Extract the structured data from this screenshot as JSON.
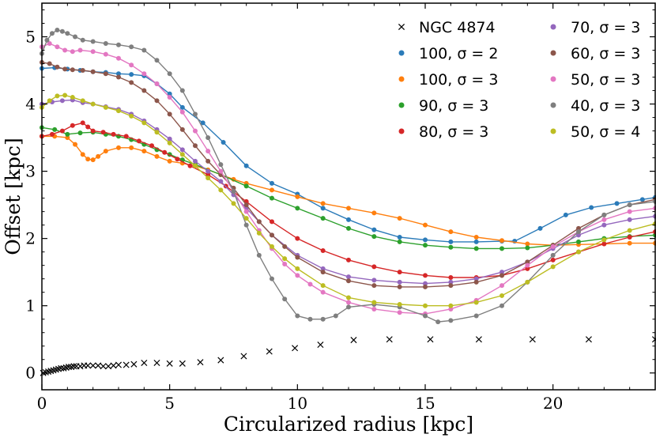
{
  "chart_data": {
    "type": "line",
    "title": "",
    "xlabel": "Circularized radius [kpc]",
    "ylabel": "Offset [kpc]",
    "xlim": [
      0,
      24
    ],
    "ylim": [
      -0.25,
      5.5
    ],
    "xticks": [
      0,
      5,
      10,
      15,
      20
    ],
    "yticks": [
      0,
      1,
      2,
      3,
      4,
      5
    ],
    "xtick_labels": [
      "0",
      "5",
      "10",
      "15",
      "20"
    ],
    "ytick_labels": [
      "0",
      "1",
      "2",
      "3",
      "4",
      "5"
    ],
    "grid": false,
    "legend_position": "top-right",
    "series": [
      {
        "name": "NGC 4874",
        "marker": "x",
        "color": "#000000",
        "line": false,
        "x": [
          0.05,
          0.15,
          0.25,
          0.35,
          0.45,
          0.55,
          0.65,
          0.75,
          0.85,
          0.95,
          1.05,
          1.15,
          1.25,
          1.35,
          1.5,
          1.65,
          1.8,
          2.0,
          2.2,
          2.4,
          2.6,
          2.8,
          3.0,
          3.3,
          3.6,
          4.0,
          4.5,
          5.0,
          5.5,
          6.2,
          7.0,
          7.9,
          8.9,
          9.9,
          10.9,
          12.2,
          13.6,
          15.2,
          17.1,
          19.2,
          21.4,
          24.0
        ],
        "y": [
          0.0,
          0.01,
          0.02,
          0.03,
          0.04,
          0.05,
          0.06,
          0.07,
          0.07,
          0.08,
          0.09,
          0.09,
          0.1,
          0.1,
          0.1,
          0.11,
          0.11,
          0.11,
          0.11,
          0.1,
          0.1,
          0.11,
          0.12,
          0.12,
          0.13,
          0.15,
          0.15,
          0.14,
          0.14,
          0.16,
          0.19,
          0.25,
          0.32,
          0.37,
          0.42,
          0.49,
          0.5,
          0.5,
          0.5,
          0.5,
          0.5,
          0.5
        ]
      },
      {
        "name": "100, σ=2",
        "marker": "o",
        "color": "#2b7bb9",
        "line": true,
        "x": [
          0.0,
          0.5,
          1.0,
          1.5,
          2.0,
          2.5,
          3.0,
          3.5,
          4.0,
          4.5,
          5.0,
          5.5,
          6.3,
          7.1,
          8.0,
          9.0,
          10.0,
          11.0,
          12.0,
          13.0,
          14.0,
          15.0,
          16.0,
          17.0,
          18.0,
          18.5,
          19.5,
          20.5,
          21.5,
          22.5,
          23.5,
          24.0
        ],
        "y": [
          4.53,
          4.54,
          4.52,
          4.5,
          4.48,
          4.47,
          4.45,
          4.44,
          4.42,
          4.3,
          4.15,
          3.95,
          3.72,
          3.43,
          3.08,
          2.82,
          2.66,
          2.45,
          2.28,
          2.13,
          2.02,
          1.98,
          1.95,
          1.95,
          1.96,
          1.96,
          2.15,
          2.35,
          2.46,
          2.52,
          2.58,
          2.61
        ]
      },
      {
        "name": "100, σ=3",
        "marker": "o",
        "color": "#ff7f0e",
        "line": true,
        "x": [
          0.0,
          0.5,
          1.0,
          1.3,
          1.6,
          1.8,
          2.0,
          2.2,
          2.5,
          3.0,
          3.5,
          4.0,
          4.5,
          5.0,
          5.5,
          6.0,
          6.5,
          7.0,
          7.5,
          8.0,
          9.0,
          10.0,
          11.0,
          12.0,
          13.0,
          14.0,
          15.0,
          16.0,
          17.0,
          18.0,
          19.0,
          20.0,
          21.0,
          22.0,
          23.0,
          24.0
        ],
        "y": [
          3.52,
          3.52,
          3.5,
          3.4,
          3.25,
          3.18,
          3.17,
          3.22,
          3.3,
          3.35,
          3.35,
          3.3,
          3.22,
          3.15,
          3.12,
          3.08,
          3.02,
          2.95,
          2.88,
          2.82,
          2.72,
          2.62,
          2.52,
          2.45,
          2.38,
          2.3,
          2.2,
          2.1,
          2.02,
          1.97,
          1.92,
          1.9,
          1.91,
          1.92,
          1.93,
          1.93
        ]
      },
      {
        "name": "90, σ=3",
        "marker": "o",
        "color": "#2ca02c",
        "line": true,
        "x": [
          0.0,
          0.5,
          1.0,
          1.5,
          2.0,
          2.5,
          3.0,
          3.5,
          4.0,
          4.5,
          5.0,
          5.5,
          6.0,
          7.0,
          8.0,
          9.0,
          10.0,
          11.0,
          12.0,
          13.0,
          14.0,
          15.0,
          16.0,
          17.0,
          18.0,
          19.0,
          20.0,
          21.0,
          22.0,
          23.0,
          24.0
        ],
        "y": [
          3.65,
          3.62,
          3.55,
          3.57,
          3.58,
          3.55,
          3.52,
          3.47,
          3.4,
          3.32,
          3.25,
          3.17,
          3.1,
          2.95,
          2.78,
          2.6,
          2.45,
          2.3,
          2.15,
          2.03,
          1.95,
          1.9,
          1.87,
          1.85,
          1.85,
          1.86,
          1.9,
          1.95,
          2.0,
          2.03,
          2.05
        ]
      },
      {
        "name": "80, σ=3",
        "marker": "o",
        "color": "#d62728",
        "line": true,
        "x": [
          0.0,
          0.4,
          0.8,
          1.2,
          1.6,
          1.8,
          2.0,
          2.4,
          2.8,
          3.3,
          3.8,
          4.3,
          4.8,
          5.3,
          5.8,
          6.5,
          7.2,
          8.0,
          9.0,
          10.0,
          11.0,
          12.0,
          13.0,
          14.0,
          15.0,
          16.0,
          17.0,
          18.0,
          19.0,
          20.0,
          21.0,
          22.0,
          23.0,
          24.0
        ],
        "y": [
          3.52,
          3.55,
          3.6,
          3.68,
          3.72,
          3.66,
          3.6,
          3.58,
          3.55,
          3.52,
          3.45,
          3.38,
          3.28,
          3.18,
          3.08,
          2.95,
          2.78,
          2.55,
          2.25,
          2.0,
          1.82,
          1.68,
          1.58,
          1.5,
          1.45,
          1.42,
          1.42,
          1.45,
          1.55,
          1.68,
          1.8,
          1.92,
          2.02,
          2.1
        ]
      },
      {
        "name": "70, σ=3",
        "marker": "o",
        "color": "#9467bd",
        "line": true,
        "x": [
          0.0,
          0.4,
          0.8,
          1.2,
          1.6,
          2.0,
          2.5,
          3.0,
          3.5,
          4.0,
          4.5,
          5.0,
          5.5,
          6.0,
          6.5,
          7.0,
          7.5,
          8.0,
          8.5,
          9.0,
          10.0,
          11.0,
          12.0,
          13.0,
          14.0,
          15.0,
          16.0,
          17.0,
          18.0,
          19.0,
          20.0,
          21.0,
          22.0,
          23.0,
          24.0
        ],
        "y": [
          4.0,
          4.03,
          4.05,
          4.06,
          4.02,
          4.0,
          3.96,
          3.92,
          3.85,
          3.75,
          3.62,
          3.48,
          3.32,
          3.15,
          3.0,
          2.85,
          2.65,
          2.45,
          2.25,
          2.05,
          1.75,
          1.55,
          1.43,
          1.38,
          1.35,
          1.33,
          1.35,
          1.4,
          1.5,
          1.65,
          1.85,
          2.05,
          2.2,
          2.28,
          2.33
        ]
      },
      {
        "name": "60, σ=3",
        "marker": "o",
        "color": "#8c564b",
        "line": true,
        "x": [
          0.0,
          0.3,
          0.6,
          0.9,
          1.2,
          1.6,
          2.0,
          2.5,
          3.0,
          3.5,
          4.0,
          4.5,
          5.0,
          5.5,
          6.0,
          6.5,
          7.0,
          7.5,
          8.0,
          8.5,
          9.0,
          9.5,
          10.0,
          11.0,
          12.0,
          13.0,
          14.0,
          15.0,
          16.0,
          17.0,
          18.0,
          19.0,
          20.0,
          21.0,
          22.0,
          23.0,
          24.0
        ],
        "y": [
          4.62,
          4.6,
          4.55,
          4.52,
          4.51,
          4.5,
          4.48,
          4.45,
          4.4,
          4.32,
          4.2,
          4.05,
          3.85,
          3.62,
          3.38,
          3.15,
          2.95,
          2.75,
          2.5,
          2.25,
          2.05,
          1.88,
          1.72,
          1.5,
          1.37,
          1.3,
          1.28,
          1.28,
          1.3,
          1.35,
          1.45,
          1.65,
          1.9,
          2.15,
          2.35,
          2.5,
          2.58
        ]
      },
      {
        "name": "50, σ=3",
        "marker": "o",
        "color": "#e377c2",
        "line": true,
        "x": [
          0.0,
          0.3,
          0.6,
          0.9,
          1.2,
          1.5,
          2.0,
          2.5,
          3.0,
          3.5,
          4.0,
          4.5,
          5.0,
          5.5,
          6.0,
          6.5,
          7.0,
          7.5,
          8.0,
          8.5,
          9.0,
          9.5,
          10.0,
          10.5,
          11.0,
          12.0,
          13.0,
          14.0,
          15.0,
          16.0,
          17.0,
          18.0,
          19.0,
          20.0,
          21.0,
          22.0,
          23.0,
          24.0
        ],
        "y": [
          4.85,
          4.9,
          4.85,
          4.8,
          4.78,
          4.8,
          4.78,
          4.74,
          4.68,
          4.58,
          4.45,
          4.3,
          4.1,
          3.88,
          3.6,
          3.3,
          3.0,
          2.7,
          2.4,
          2.12,
          1.85,
          1.62,
          1.45,
          1.32,
          1.2,
          1.05,
          0.95,
          0.9,
          0.88,
          0.95,
          1.08,
          1.3,
          1.6,
          1.88,
          2.1,
          2.28,
          2.4,
          2.45
        ]
      },
      {
        "name": "40, σ=3",
        "marker": "o",
        "color": "#7f7f7f",
        "line": true,
        "x": [
          0.0,
          0.2,
          0.4,
          0.6,
          0.8,
          1.0,
          1.3,
          1.6,
          2.0,
          2.5,
          3.0,
          3.5,
          4.0,
          4.5,
          5.0,
          5.5,
          6.0,
          6.5,
          7.0,
          7.5,
          8.0,
          8.5,
          9.0,
          9.5,
          10.0,
          10.5,
          11.0,
          11.5,
          12.0,
          13.0,
          14.0,
          15.0,
          15.5,
          16.0,
          17.0,
          18.0,
          19.0,
          20.0,
          21.0,
          22.0,
          23.0,
          24.0
        ],
        "y": [
          4.75,
          4.95,
          5.05,
          5.1,
          5.08,
          5.05,
          5.0,
          4.95,
          4.93,
          4.9,
          4.88,
          4.85,
          4.8,
          4.65,
          4.45,
          4.2,
          3.85,
          3.5,
          3.1,
          2.7,
          2.2,
          1.75,
          1.4,
          1.1,
          0.85,
          0.8,
          0.8,
          0.85,
          0.98,
          1.02,
          0.98,
          0.85,
          0.76,
          0.78,
          0.85,
          1.0,
          1.35,
          1.75,
          2.1,
          2.35,
          2.5,
          2.55
        ]
      },
      {
        "name": "50, σ=4",
        "marker": "o",
        "color": "#bcbd22",
        "line": true,
        "x": [
          0.0,
          0.3,
          0.6,
          0.9,
          1.2,
          1.6,
          2.0,
          2.5,
          3.0,
          3.5,
          4.0,
          4.5,
          5.0,
          5.5,
          6.0,
          6.5,
          7.0,
          7.5,
          8.0,
          8.5,
          9.0,
          9.5,
          10.0,
          11.0,
          12.0,
          13.0,
          14.0,
          15.0,
          16.0,
          17.0,
          18.0,
          19.0,
          20.0,
          21.0,
          22.0,
          23.0,
          24.0
        ],
        "y": [
          3.95,
          4.05,
          4.12,
          4.13,
          4.1,
          4.05,
          4.0,
          3.95,
          3.9,
          3.82,
          3.72,
          3.58,
          3.42,
          3.25,
          3.08,
          2.9,
          2.72,
          2.52,
          2.3,
          2.08,
          1.88,
          1.7,
          1.55,
          1.3,
          1.12,
          1.05,
          1.02,
          1.0,
          1.0,
          1.05,
          1.15,
          1.35,
          1.58,
          1.8,
          1.98,
          2.12,
          2.22
        ]
      }
    ],
    "legend_labels": {
      "NGC 4874": "NGC 4874",
      "100, σ=2": "100, σ = 2",
      "100, σ=3": "100, σ = 3",
      "90, σ=3": "90, σ = 3",
      "80, σ=3": "80, σ = 3",
      "70, σ=3": "70, σ = 3",
      "60, σ=3": "60, σ = 3",
      "50, σ=3": "50, σ = 3",
      "40, σ=3": "40, σ = 3",
      "50, σ=4": "50, σ = 4"
    }
  }
}
